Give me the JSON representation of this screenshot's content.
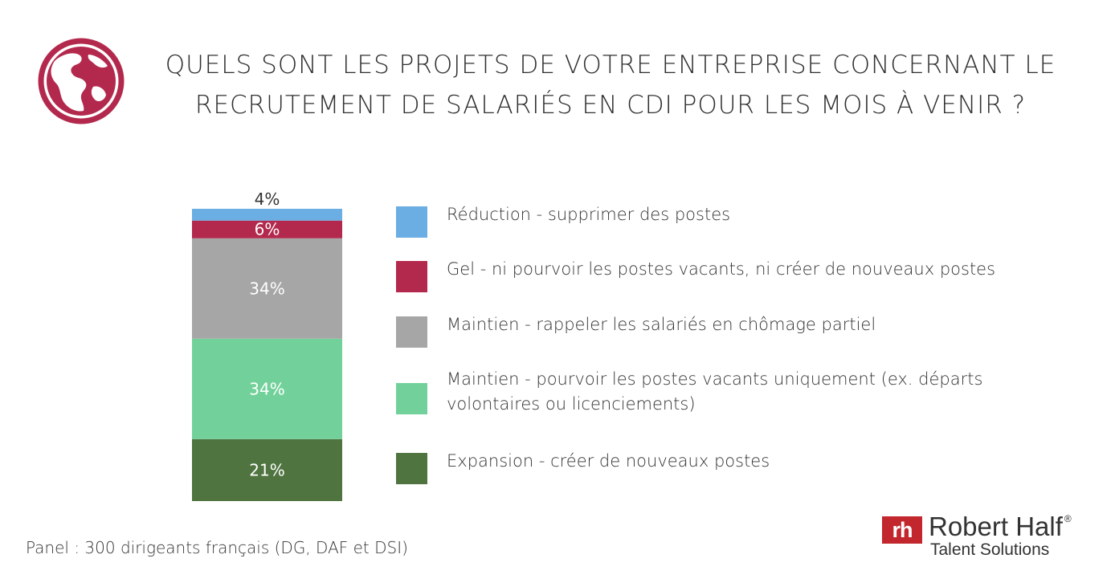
{
  "title": {
    "line1": "QUELS SONT LES PROJETS DE VOTRE ENTREPRISE CONCERNANT LE",
    "line2": "RECRUTEMENT DE SALARIÉS EN CDI POUR LES MOIS À VENIR ?"
  },
  "icons": {
    "globe": "globe-icon"
  },
  "colors": {
    "reduction": "#6aaee3",
    "gel": "#b3294d",
    "maintien_rappel": "#a6a6a6",
    "maintien_pourvoir": "#72d19a",
    "expansion": "#4f7440",
    "globe": "#b3294d",
    "brand": "#c1272d"
  },
  "chart_data": {
    "type": "bar",
    "stacked": true,
    "categories": [
      ""
    ],
    "series": [
      {
        "name": "Expansion - créer de nouveaux postes",
        "values": [
          21
        ],
        "label": "21%"
      },
      {
        "name": "Maintien - pourvoir les postes vacants uniquement (ex. départs volontaires ou licenciements)",
        "values": [
          34
        ],
        "label": "34%"
      },
      {
        "name": "Maintien - rappeler les salariés en chômage partiel",
        "values": [
          34
        ],
        "label": "34%"
      },
      {
        "name": "Gel - ni pourvoir les postes vacants, ni créer de nouveaux postes",
        "values": [
          6
        ],
        "label": "6%"
      },
      {
        "name": "Réduction - supprimer des postes",
        "values": [
          4
        ],
        "label": "4%"
      }
    ],
    "legend": "right"
  },
  "legend": {
    "items": [
      {
        "text": "Réduction - supprimer des postes"
      },
      {
        "text": "Gel - ni pourvoir les postes vacants, ni créer de nouveaux postes"
      },
      {
        "text": "Maintien - rappeler les salariés en chômage partiel"
      },
      {
        "text": "Maintien - pourvoir les postes vacants uniquement (ex. départs volontaires ou licenciements)"
      },
      {
        "text": "Expansion - créer de nouveaux postes"
      }
    ]
  },
  "footer": {
    "panel": "Panel : 300 dirigeants français (DG, DAF et DSI)"
  },
  "logo": {
    "mark": "rh",
    "name": "Robert Half",
    "reg": "®",
    "sub": "Talent Solutions"
  }
}
